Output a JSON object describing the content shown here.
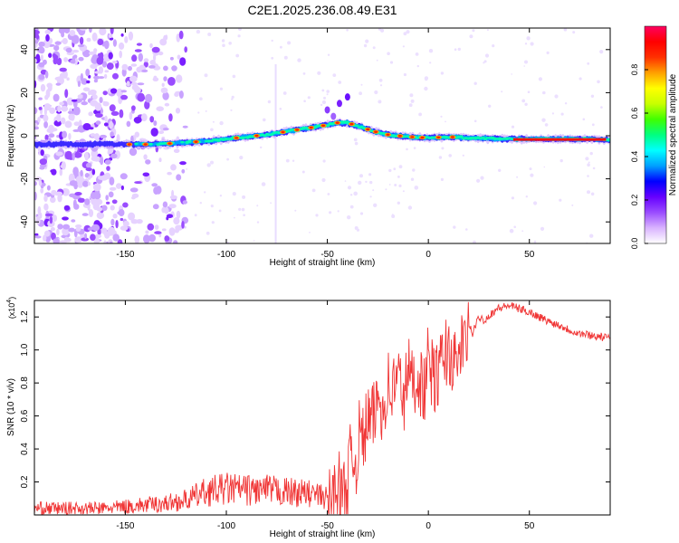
{
  "title": "C2E1.2025.236.08.49.E31",
  "colors": {
    "snr_line": "#f03535",
    "colormap": [
      "#ffffff",
      "#d9b3ff",
      "#9a4cff",
      "#6600ff",
      "#0000ff",
      "#00a0ff",
      "#00ffff",
      "#00ff80",
      "#40ff00",
      "#c8ff00",
      "#ffff00",
      "#ffa000",
      "#ff3000",
      "#ff0000",
      "#ff0060"
    ]
  },
  "chart_data": [
    {
      "type": "heatmap",
      "name": "spectrogram",
      "title": "C2E1.2025.236.08.49.E31",
      "xlabel": "Height of straight line (km)",
      "ylabel": "Frequency (Hz)",
      "xlim": [
        -195,
        90
      ],
      "ylim": [
        -50,
        50
      ],
      "xticks": [
        -150,
        -100,
        -50,
        0,
        50
      ],
      "yticks": [
        -40,
        -20,
        0,
        20,
        40
      ],
      "ridge": {
        "x": [
          -195,
          -160,
          -140,
          -125,
          -110,
          -100,
          -90,
          -80,
          -70,
          -60,
          -50,
          -45,
          -40,
          -35,
          -30,
          -25,
          -20,
          -10,
          0,
          10,
          20,
          40,
          60,
          80,
          90
        ],
        "y": [
          -4,
          -4,
          -4,
          -3.5,
          -2.5,
          -1.5,
          -0.5,
          0.5,
          2,
          3.5,
          5,
          6,
          6,
          4.5,
          3,
          1.5,
          0.5,
          -0.5,
          -1,
          -0.5,
          -1,
          -1.5,
          -1.5,
          -1.5,
          -2
        ]
      },
      "colorbar": {
        "label": "Normalized spectral amplitude",
        "range": [
          0,
          1
        ],
        "ticks": [
          "0.0",
          "0.2",
          "0.4",
          "0.6",
          "0.8"
        ]
      }
    },
    {
      "type": "line",
      "name": "snr",
      "xlabel": "Height of straight line (km)",
      "ylabel": "SNR (10 * v/v)",
      "scale_note": "(x10^4)",
      "scale_base": "(x10",
      "scale_exp": "4",
      "scale_close": ")",
      "xlim": [
        -195,
        90
      ],
      "ylim": [
        0.0,
        1.3
      ],
      "xticks": [
        -150,
        -100,
        -50,
        0,
        50
      ],
      "yticks": [
        "0.2",
        "0.4",
        "0.6",
        "0.8",
        "1.0",
        "1.2"
      ],
      "series": [
        {
          "name": "SNR",
          "x": [
            -195,
            -180,
            -160,
            -150,
            -140,
            -130,
            -120,
            -110,
            -100,
            -90,
            -80,
            -70,
            -60,
            -55,
            -50,
            -48,
            -45,
            -42,
            -40,
            -38,
            -36,
            -34,
            -32,
            -30,
            -28,
            -25,
            -22,
            -20,
            -18,
            -15,
            -12,
            -10,
            -8,
            -5,
            -2,
            0,
            3,
            6,
            9,
            12,
            14,
            16,
            18,
            20,
            22,
            25,
            28,
            31,
            34,
            37,
            40,
            45,
            50,
            55,
            60,
            65,
            70,
            75,
            80,
            85,
            90
          ],
          "y": [
            0.04,
            0.04,
            0.04,
            0.05,
            0.06,
            0.07,
            0.09,
            0.14,
            0.16,
            0.15,
            0.15,
            0.14,
            0.13,
            0.12,
            0.1,
            0.08,
            0.2,
            0.12,
            0.2,
            0.4,
            0.3,
            0.5,
            0.45,
            0.6,
            0.55,
            0.7,
            0.65,
            0.8,
            0.75,
            0.85,
            0.7,
            0.9,
            0.8,
            0.85,
            0.75,
            0.95,
            0.8,
            0.9,
            1.0,
            0.95,
            0.85,
            1.05,
            1.0,
            1.15,
            1.1,
            1.2,
            1.18,
            1.22,
            1.25,
            1.26,
            1.27,
            1.25,
            1.23,
            1.2,
            1.17,
            1.15,
            1.12,
            1.1,
            1.09,
            1.08,
            1.07
          ]
        }
      ]
    }
  ]
}
